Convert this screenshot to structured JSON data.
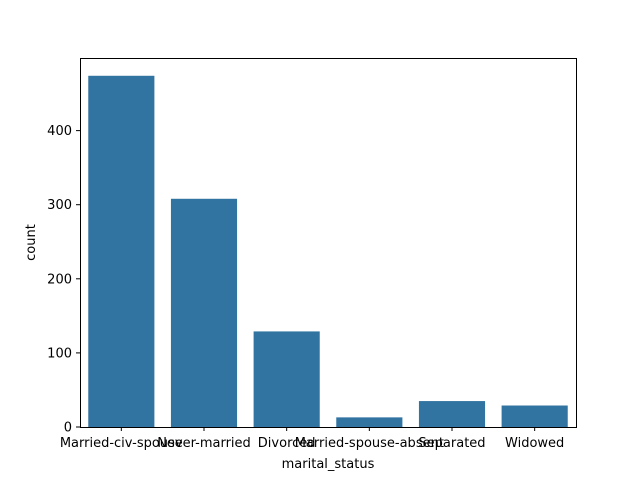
{
  "chart_data": {
    "type": "bar",
    "categories": [
      "Married-civ-spouse",
      "Never-married",
      "Divorced",
      "Married-spouse-absent",
      "Separated",
      "Widowed"
    ],
    "values": [
      474,
      308,
      129,
      13,
      35,
      29
    ],
    "title": "",
    "xlabel": "marital_status",
    "ylabel": "count",
    "ylim": [
      0,
      498
    ],
    "yticks": [
      0,
      100,
      200,
      300,
      400
    ],
    "grid": false,
    "bar_color": "#3274a1"
  }
}
